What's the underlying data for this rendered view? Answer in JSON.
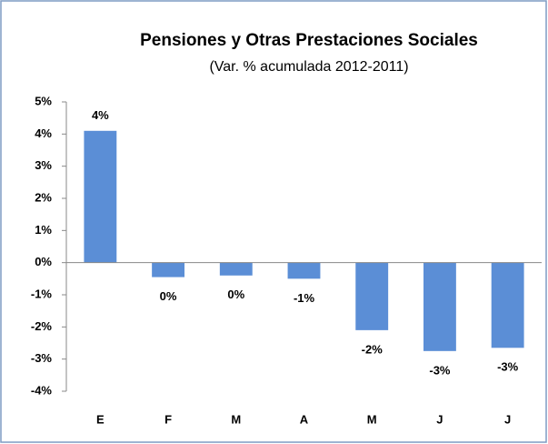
{
  "chart_data": {
    "type": "bar",
    "title": "Pensiones y Otras Prestaciones Sociales",
    "subtitle": "(Var. % acumulada 2012-2011)",
    "categories": [
      "E",
      "F",
      "M",
      "A",
      "M",
      "J",
      "J"
    ],
    "values": [
      4.1,
      -0.45,
      -0.4,
      -0.5,
      -2.1,
      -2.75,
      -2.65
    ],
    "value_labels": [
      "4%",
      "0%",
      "0%",
      "-1%",
      "-2%",
      "-3%",
      "-3%"
    ],
    "color": "#5b8ed6",
    "ylim": [
      -4,
      5
    ],
    "yticks": [
      {
        "value": -4,
        "label": "-4%"
      },
      {
        "value": -3,
        "label": "-3%"
      },
      {
        "value": -2,
        "label": "-2%"
      },
      {
        "value": -1,
        "label": "-1%"
      },
      {
        "value": 0,
        "label": "0%"
      },
      {
        "value": 1,
        "label": "1%"
      },
      {
        "value": 2,
        "label": "2%"
      },
      {
        "value": 3,
        "label": "3%"
      },
      {
        "value": 4,
        "label": "4%"
      },
      {
        "value": 5,
        "label": "5%"
      }
    ],
    "grid": false
  }
}
